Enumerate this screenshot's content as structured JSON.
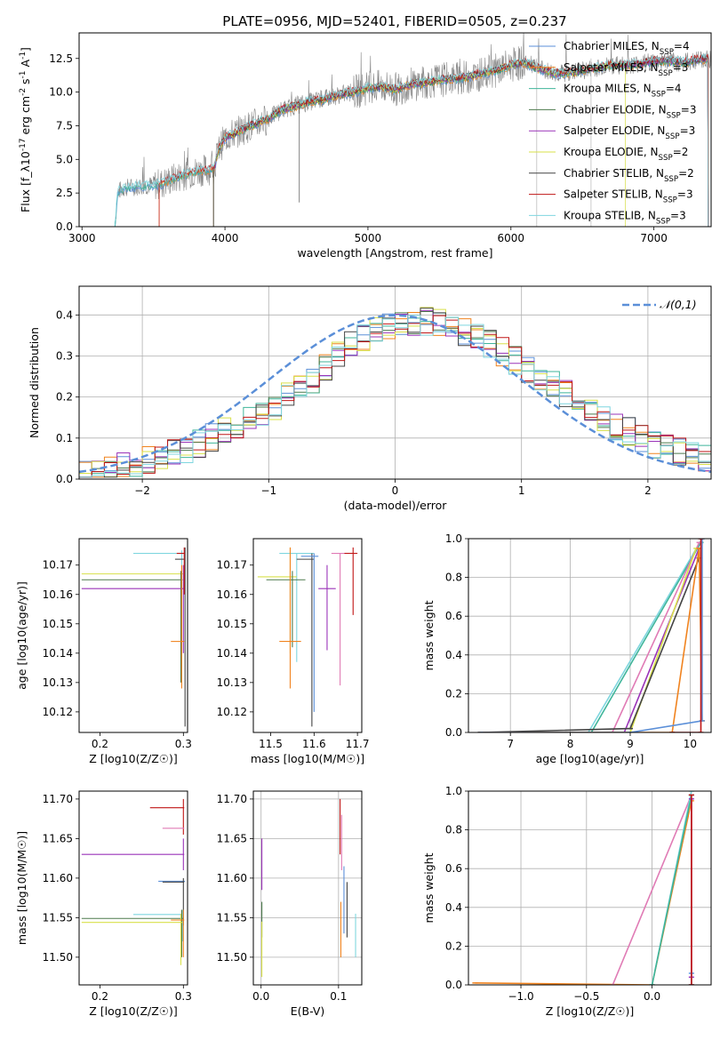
{
  "figure_title": "PLATE=0956, MJD=52401, FIBERID=0505, z=0.237",
  "chart_data": [
    {
      "id": "spectrum",
      "type": "line",
      "title": "PLATE=0956, MJD=52401, FIBERID=0505, z=0.237",
      "xlabel": "wavelength [Angstrom, rest frame]",
      "ylabel": "Flux [f_λ10^-17 erg cm^-2 s^-1 A^-1]",
      "xlim": [
        2980,
        7400
      ],
      "ylim": [
        0,
        14.4
      ],
      "xticks": [
        3000,
        4000,
        5000,
        6000,
        7000
      ],
      "yticks": [
        0.0,
        2.5,
        5.0,
        7.5,
        10.0,
        12.5
      ],
      "legend_position": "upper-right",
      "grid": false,
      "continuum": {
        "x": [
          3230,
          3250,
          3300,
          3400,
          3500,
          3560,
          3650,
          3750,
          3850,
          3920,
          3960,
          4000,
          4100,
          4200,
          4300,
          4400,
          4500,
          4600,
          4700,
          4800,
          4900,
          5000,
          5100,
          5200,
          5300,
          5400,
          5500,
          5600,
          5700,
          5800,
          5900,
          6000,
          6100,
          6180,
          6300,
          6400,
          6500,
          6600,
          6700,
          6800,
          6900,
          7000,
          7100,
          7200,
          7300,
          7400
        ],
        "y": [
          0,
          2.6,
          2.9,
          3.0,
          3.1,
          3.2,
          3.6,
          4.0,
          4.2,
          4.3,
          5.8,
          6.6,
          7.1,
          7.6,
          8.0,
          8.7,
          9.0,
          9.3,
          9.5,
          9.8,
          10.0,
          10.3,
          10.4,
          10.2,
          10.6,
          10.7,
          10.9,
          11.0,
          11.1,
          11.4,
          11.6,
          12.0,
          12.2,
          11.8,
          11.4,
          11.4,
          11.6,
          11.8,
          12.0,
          12.0,
          12.1,
          12.3,
          12.3,
          12.2,
          12.4,
          12.5
        ]
      },
      "series": [
        {
          "name": "Chabrier MILES, N_SSP=4",
          "color": "#5b8fd8"
        },
        {
          "name": "Salpeter MILES, N_SSP=3",
          "color": "#f0831f"
        },
        {
          "name": "Kroupa MILES, N_SSP=4",
          "color": "#3fb59a"
        },
        {
          "name": "Chabrier ELODIE, N_SSP=3",
          "color": "#4d7a4d"
        },
        {
          "name": "Salpeter ELODIE, N_SSP=3",
          "color": "#9a33b8"
        },
        {
          "name": "Kroupa ELODIE, N_SSP=2",
          "color": "#d8e04a"
        },
        {
          "name": "Chabrier STELIB, N_SSP=2",
          "color": "#444444"
        },
        {
          "name": "Salpeter STELIB, N_SSP=3",
          "color": "#c01616"
        },
        {
          "name": "Kroupa STELIB, N_SSP=3",
          "color": "#7fd6df"
        }
      ],
      "data_series_color": "#888888"
    },
    {
      "id": "residuals",
      "type": "line",
      "xlabel": "(data-model)/error",
      "ylabel": "Normed distribution",
      "xlim": [
        -2.5,
        2.5
      ],
      "ylim": [
        0,
        0.47
      ],
      "xticks": [
        -2,
        -1,
        0,
        1,
        2
      ],
      "yticks": [
        0.0,
        0.1,
        0.2,
        0.3,
        0.4
      ],
      "grid": true,
      "legend_position": "upper-right",
      "gaussian": {
        "name": "𝒩(0,1)",
        "mean": 0,
        "sigma": 1,
        "color": "#5b8fd8"
      },
      "histogram": {
        "bin_width": 0.1,
        "x_center": [
          -2.45,
          -2.35,
          -2.25,
          -2.15,
          -2.05,
          -1.95,
          -1.85,
          -1.75,
          -1.65,
          -1.55,
          -1.45,
          -1.35,
          -1.25,
          -1.15,
          -1.05,
          -0.95,
          -0.85,
          -0.75,
          -0.65,
          -0.55,
          -0.45,
          -0.35,
          -0.25,
          -0.15,
          -0.05,
          0.05,
          0.15,
          0.25,
          0.35,
          0.45,
          0.55,
          0.65,
          0.75,
          0.85,
          0.95,
          1.05,
          1.15,
          1.25,
          1.35,
          1.45,
          1.55,
          1.65,
          1.75,
          1.85,
          1.95,
          2.05,
          2.15,
          2.25,
          2.35,
          2.45
        ],
        "values": [
          0.015,
          0.02,
          0.025,
          0.03,
          0.04,
          0.045,
          0.055,
          0.065,
          0.075,
          0.085,
          0.1,
          0.115,
          0.13,
          0.15,
          0.165,
          0.18,
          0.2,
          0.22,
          0.245,
          0.27,
          0.3,
          0.325,
          0.345,
          0.36,
          0.375,
          0.38,
          0.385,
          0.385,
          0.38,
          0.37,
          0.36,
          0.345,
          0.33,
          0.31,
          0.29,
          0.27,
          0.25,
          0.23,
          0.21,
          0.19,
          0.17,
          0.15,
          0.13,
          0.115,
          0.1,
          0.085,
          0.075,
          0.065,
          0.055,
          0.05
        ]
      }
    },
    {
      "id": "age-vs-Z",
      "type": "scatter",
      "xlabel": "Z [log10(Z/Z☉)]",
      "ylabel": "age [log10(age/yr)]",
      "xlim": [
        0.175,
        0.305
      ],
      "ylim": [
        10.113,
        10.179
      ],
      "xticks": [
        0.2,
        0.3
      ],
      "yticks": [
        10.12,
        10.13,
        10.14,
        10.15,
        10.16,
        10.17
      ]
    },
    {
      "id": "age-vs-mass",
      "type": "scatter",
      "xlabel": "mass [log10(M/M☉)]",
      "ylabel": "",
      "xlim": [
        11.46,
        11.71
      ],
      "ylim": [
        10.113,
        10.179
      ],
      "xticks": [
        11.5,
        11.6,
        11.7
      ],
      "yticks": [
        10.12,
        10.13,
        10.14,
        10.15,
        10.16,
        10.17
      ]
    },
    {
      "id": "weight-vs-age",
      "type": "line",
      "xlabel": "age [log10(age/yr)]",
      "ylabel": "mass weight",
      "xlim": [
        6.3,
        10.35
      ],
      "ylim": [
        0,
        1.0
      ],
      "xticks": [
        7,
        8,
        9,
        10
      ],
      "yticks": [
        0.0,
        0.2,
        0.4,
        0.6,
        0.8,
        1.0
      ],
      "grid": true
    },
    {
      "id": "mass-vs-Z",
      "type": "scatter",
      "xlabel": "Z [log10(Z/Z☉)]",
      "ylabel": "mass [log10(M/M☉)]",
      "xlim": [
        0.175,
        0.305
      ],
      "ylim": [
        11.465,
        11.71
      ],
      "xticks": [
        0.2,
        0.3
      ],
      "yticks": [
        11.5,
        11.55,
        11.6,
        11.65,
        11.7
      ]
    },
    {
      "id": "mass-vs-EBV",
      "type": "scatter",
      "xlabel": "E(B-V)",
      "ylabel": "",
      "xlim": [
        -0.01,
        0.13
      ],
      "ylim": [
        11.465,
        11.71
      ],
      "xticks": [
        0.0,
        0.1
      ],
      "yticks": [
        11.5,
        11.55,
        11.6,
        11.65,
        11.7
      ],
      "grid": true
    },
    {
      "id": "weight-vs-Z",
      "type": "line",
      "xlabel": "Z [log10(Z/Z☉)]",
      "ylabel": "mass weight",
      "xlim": [
        -1.4,
        0.45
      ],
      "ylim": [
        0,
        1.0
      ],
      "xticks": [
        -1.0,
        -0.5,
        0.0
      ],
      "yticks": [
        0.0,
        0.2,
        0.4,
        0.6,
        0.8,
        1.0
      ],
      "grid": true
    }
  ]
}
